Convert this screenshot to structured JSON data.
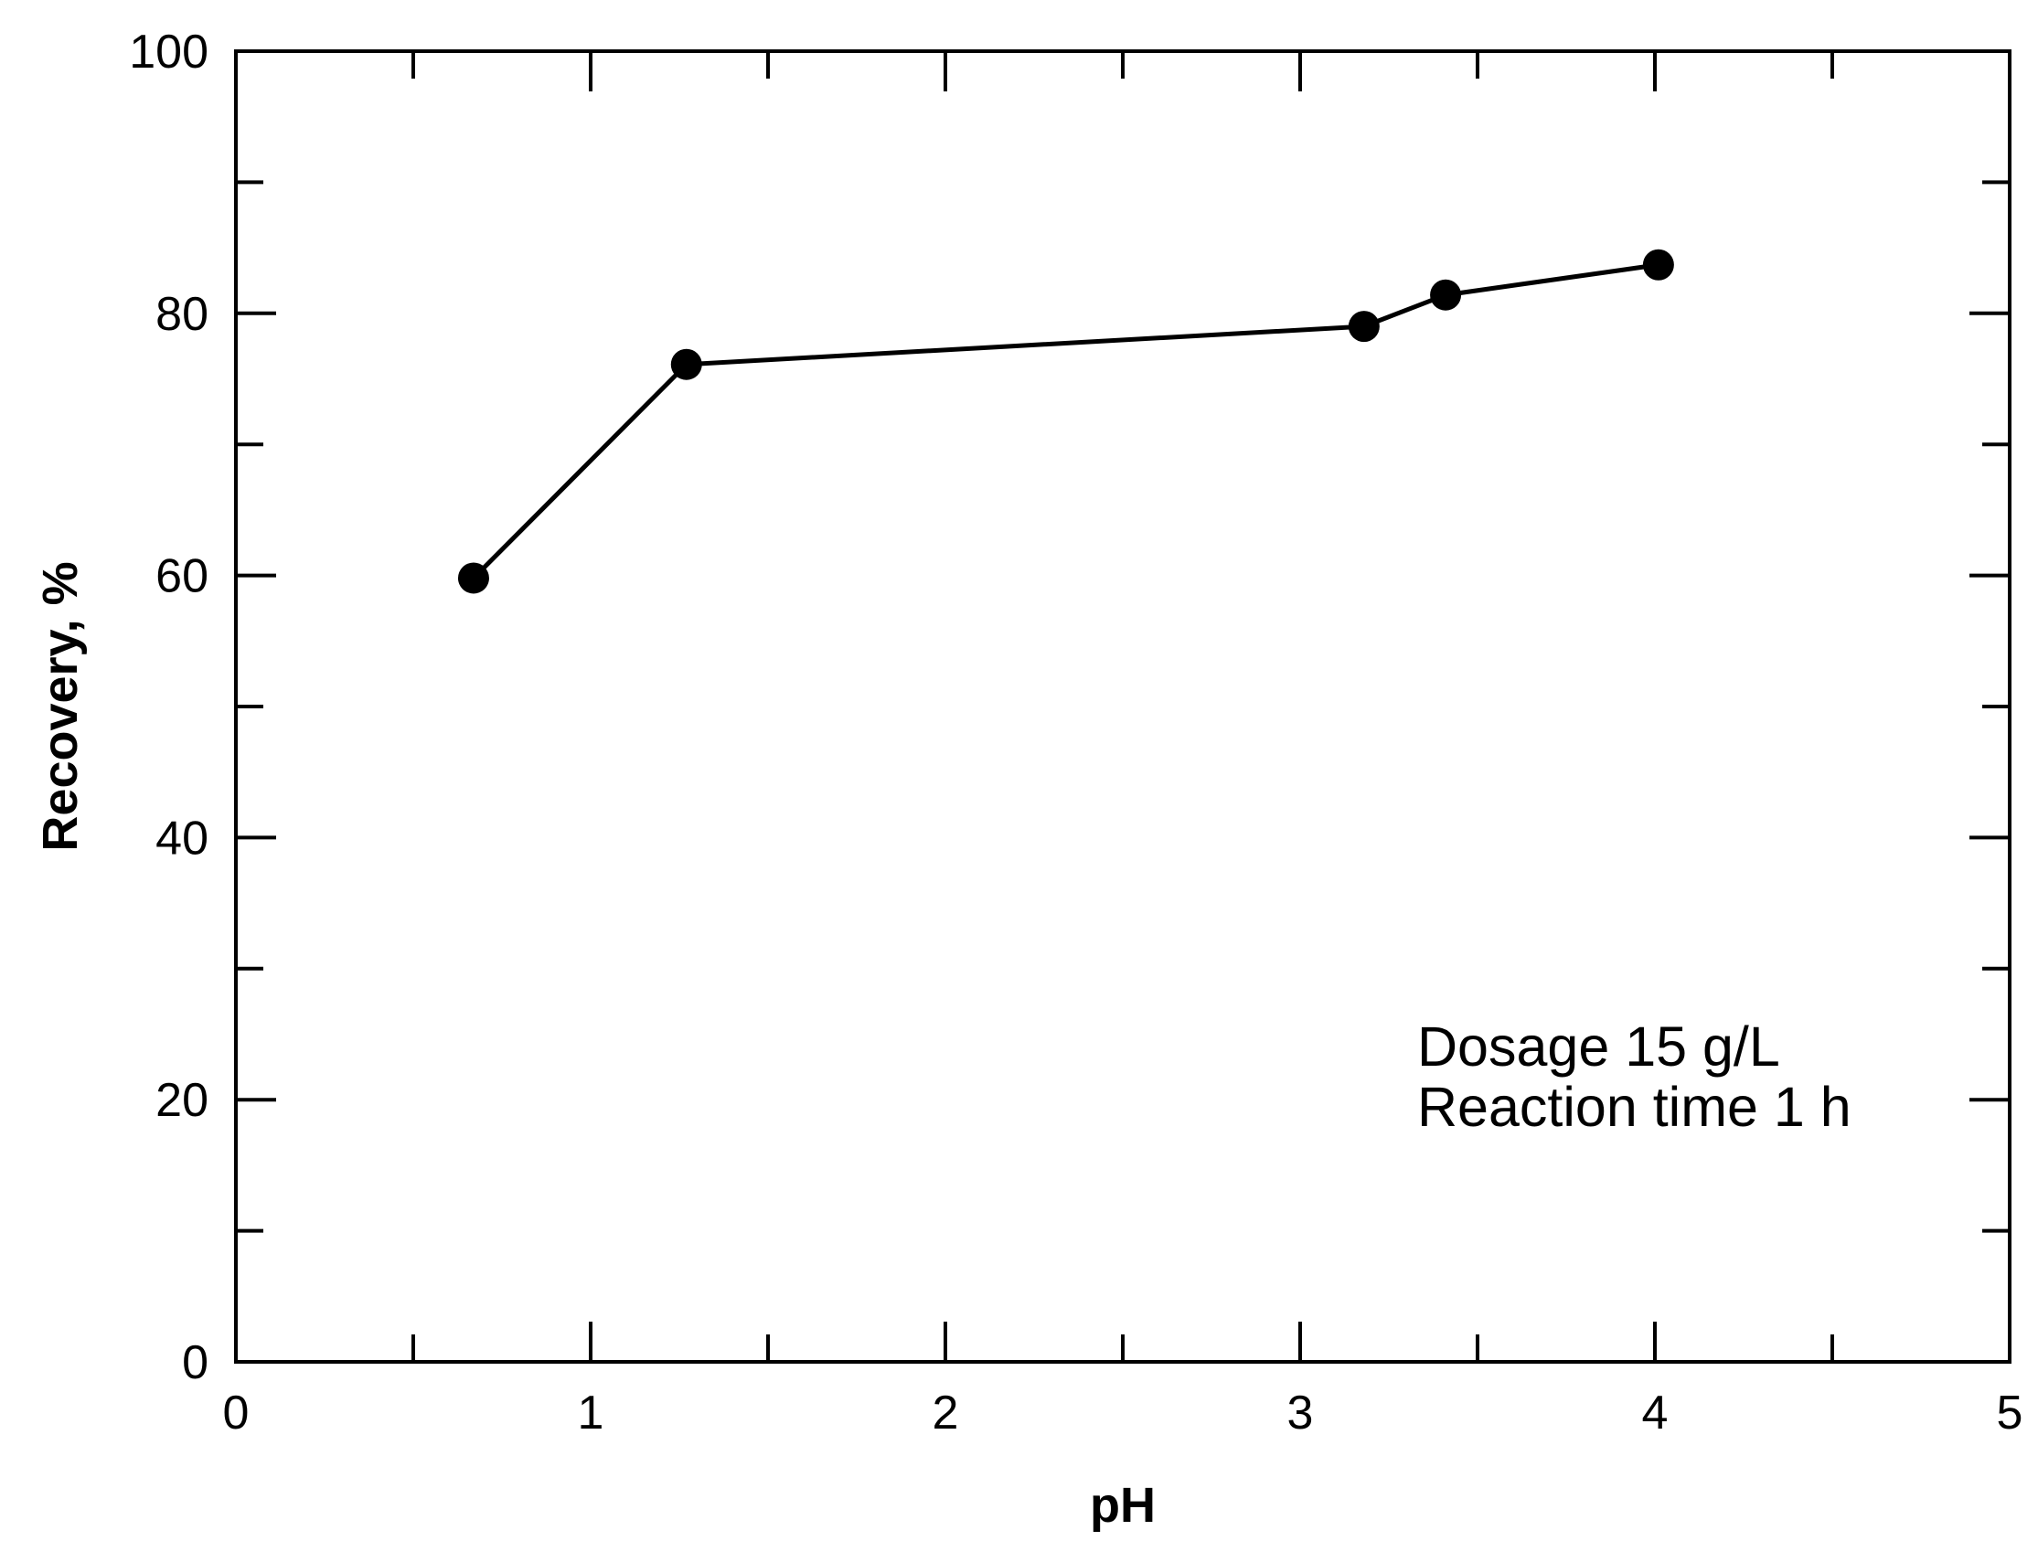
{
  "chart_data": {
    "type": "line",
    "title": "",
    "xlabel": "pH",
    "ylabel": "Recovery, %",
    "xlim": [
      0,
      5
    ],
    "ylim": [
      0,
      100
    ],
    "x_ticks": [
      "0",
      "1",
      "2",
      "3",
      "4",
      "5"
    ],
    "y_ticks": [
      "0",
      "20",
      "40",
      "60",
      "80",
      "100"
    ],
    "x_minor_step": 0.5,
    "y_minor_step": 10,
    "grid": false,
    "legend": "none",
    "series": [
      {
        "x": [
          0.67,
          1.27,
          3.18,
          3.41,
          4.01
        ],
        "y": [
          59.8,
          76.1,
          79.0,
          81.4,
          83.7
        ],
        "marker": "filled-circle",
        "color": "#000000"
      }
    ],
    "annotations": [
      "Dosage 15 g/L",
      "Reaction time 1 h"
    ]
  }
}
